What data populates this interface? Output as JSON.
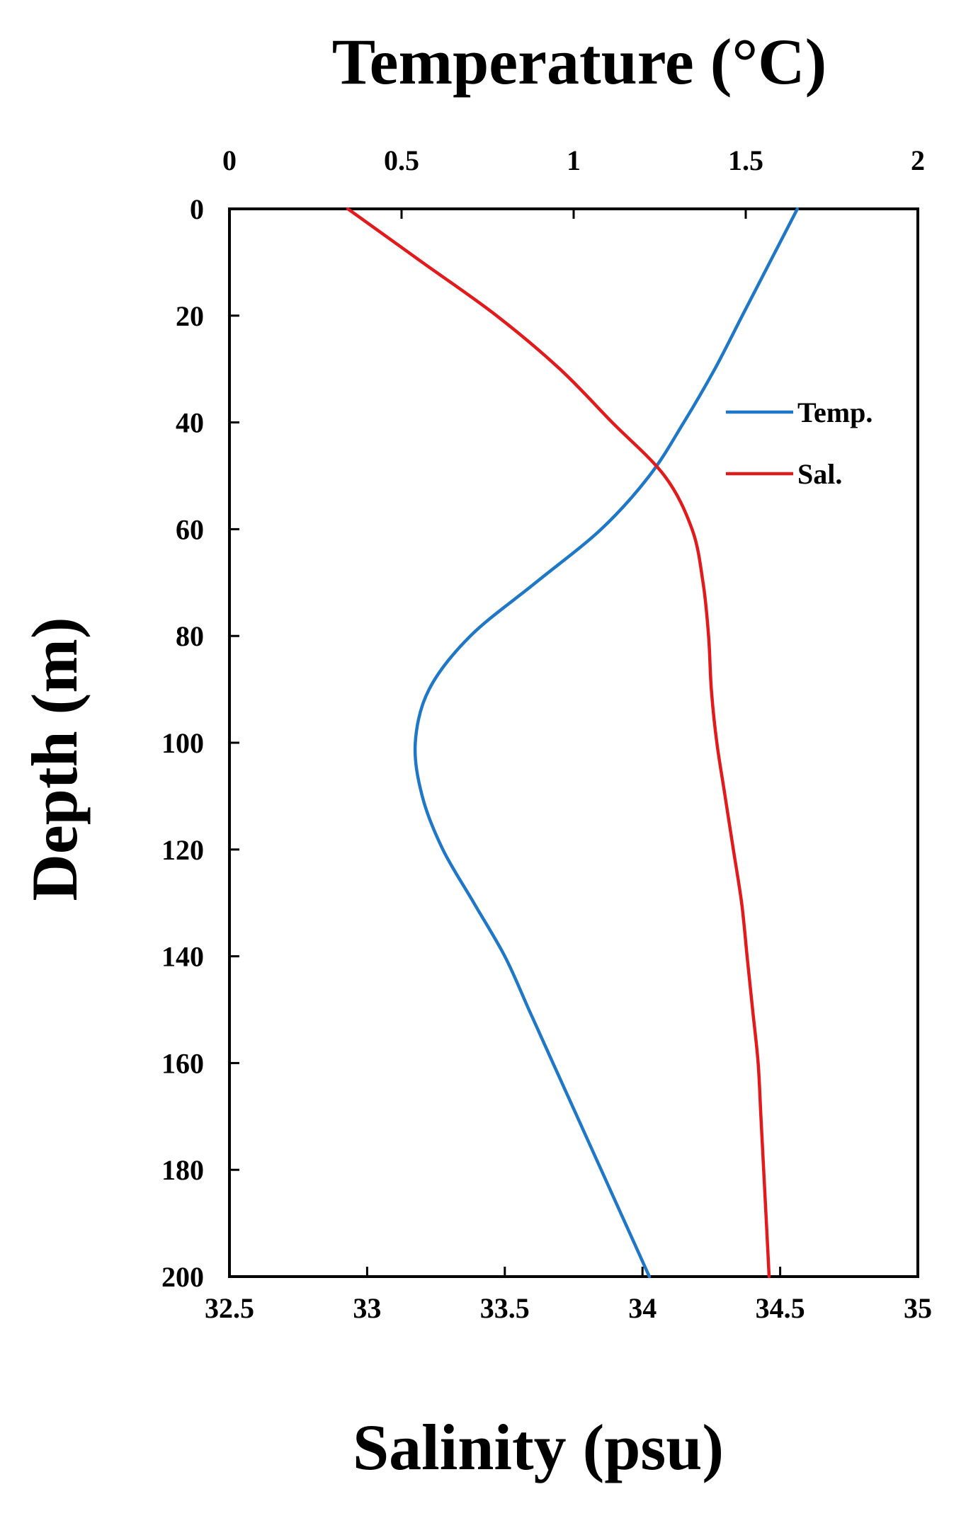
{
  "chart_data": {
    "type": "line",
    "top_axis": {
      "label": "Temperature (°C)",
      "range": [
        0,
        2
      ],
      "ticks": [
        "0",
        "0.5",
        "1",
        "1.5",
        "2"
      ],
      "tick_values": [
        0,
        0.5,
        1,
        1.5,
        2
      ]
    },
    "bottom_axis": {
      "label": "Salinity (psu)",
      "range": [
        32.5,
        35
      ],
      "ticks": [
        "32.5",
        "33",
        "33.5",
        "34",
        "34.5",
        "35"
      ],
      "tick_values": [
        32.5,
        33,
        33.5,
        34,
        34.5,
        35
      ]
    },
    "y_axis": {
      "label": "Depth (m)",
      "range": [
        0,
        200
      ],
      "inverted": true,
      "ticks": [
        "0",
        "20",
        "40",
        "60",
        "80",
        "100",
        "120",
        "140",
        "160",
        "180",
        "200"
      ],
      "tick_values": [
        0,
        20,
        40,
        60,
        80,
        100,
        120,
        140,
        160,
        180,
        200
      ]
    },
    "grid": false,
    "legend_position": "top-right",
    "series": [
      {
        "name": "Temp.",
        "axis": "top",
        "color": "#1f77c8",
        "depth": [
          0,
          10,
          20,
          30,
          40,
          50,
          60,
          70,
          80,
          90,
          100,
          110,
          120,
          130,
          140,
          150,
          160,
          170,
          180,
          190,
          200
        ],
        "values": [
          1.65,
          1.57,
          1.49,
          1.41,
          1.32,
          1.22,
          1.08,
          0.89,
          0.7,
          0.58,
          0.54,
          0.56,
          0.62,
          0.71,
          0.8,
          0.87,
          0.94,
          1.01,
          1.08,
          1.15,
          1.22
        ]
      },
      {
        "name": "Sal.",
        "axis": "bottom",
        "color": "#e31a1c",
        "depth": [
          0,
          10,
          20,
          30,
          40,
          50,
          60,
          70,
          80,
          90,
          100,
          110,
          120,
          130,
          140,
          150,
          160,
          170,
          180,
          190,
          200
        ],
        "values": [
          32.93,
          33.2,
          33.47,
          33.7,
          33.89,
          34.08,
          34.18,
          34.22,
          34.24,
          34.25,
          34.27,
          34.3,
          34.33,
          34.36,
          34.38,
          34.4,
          34.42,
          34.43,
          34.44,
          34.45,
          34.46
        ]
      }
    ]
  }
}
